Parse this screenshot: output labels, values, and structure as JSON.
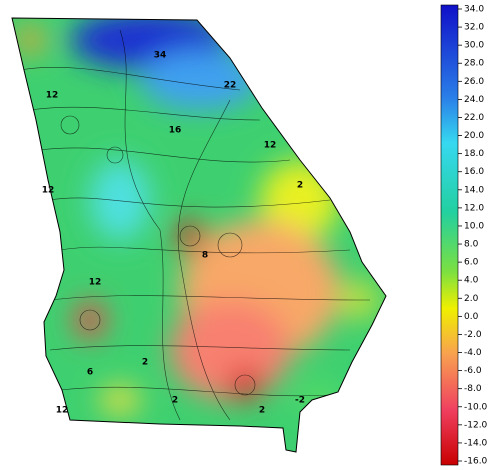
{
  "map": {
    "colorbar_ticks": [
      {
        "value": 34,
        "label": "34.0"
      },
      {
        "value": 32,
        "label": "32.0"
      },
      {
        "value": 30,
        "label": "30.0"
      },
      {
        "value": 28,
        "label": "28.0"
      },
      {
        "value": 26,
        "label": "26.0"
      },
      {
        "value": 24,
        "label": "24.0"
      },
      {
        "value": 22,
        "label": "22.0"
      },
      {
        "value": 20,
        "label": "20.0"
      },
      {
        "value": 18,
        "label": "18.0"
      },
      {
        "value": 16,
        "label": "16.0"
      },
      {
        "value": 14,
        "label": "14.0"
      },
      {
        "value": 12,
        "label": "12.0"
      },
      {
        "value": 10,
        "label": "10.0"
      },
      {
        "value": 8,
        "label": "8.0"
      },
      {
        "value": 6,
        "label": "6.0"
      },
      {
        "value": 4,
        "label": "4.0"
      },
      {
        "value": 2,
        "label": "2.0"
      },
      {
        "value": 0,
        "label": "0.0"
      },
      {
        "value": -2,
        "label": "-2.0"
      },
      {
        "value": -4,
        "label": "-4.0"
      },
      {
        "value": -6,
        "label": "-6.0"
      },
      {
        "value": -8,
        "label": "-8.0"
      },
      {
        "value": -10,
        "label": "-10.0"
      },
      {
        "value": -12,
        "label": "-12.0"
      },
      {
        "value": -14,
        "label": "-14.0"
      },
      {
        "value": -16,
        "label": "-16.0"
      }
    ],
    "contour_labels": [
      12,
      34,
      22,
      12,
      16,
      12,
      12,
      2,
      8,
      12,
      2,
      2,
      2,
      6,
      -2
    ]
  }
}
